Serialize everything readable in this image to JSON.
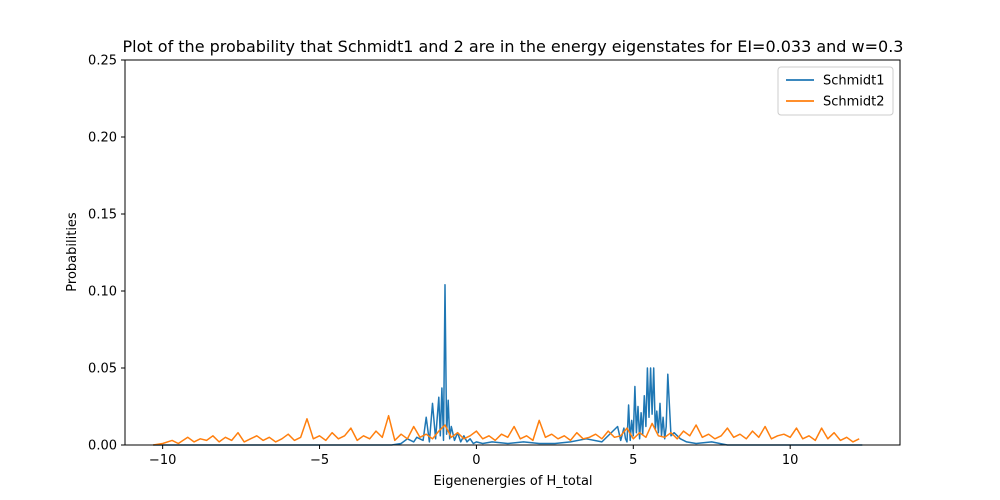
{
  "chart_data": {
    "type": "line",
    "title": "Plot of the probability that Schmidt1 and 2 are in the energy eigenstates for EI=0.033 and w=0.3",
    "xlabel": "Eigenenergies of H_total",
    "ylabel": "Probabilities",
    "xlim": [
      -11.2,
      13.5
    ],
    "ylim": [
      0,
      0.25
    ],
    "xticks": [
      -10,
      -5,
      0,
      5,
      10
    ],
    "xtick_labels": [
      "−10",
      "−5",
      "0",
      "5",
      "10"
    ],
    "yticks": [
      0.0,
      0.05,
      0.1,
      0.15,
      0.2,
      0.25
    ],
    "ytick_labels": [
      "0.00",
      "0.05",
      "0.10",
      "0.15",
      "0.20",
      "0.25"
    ],
    "grid": false,
    "legend_position": "top-right",
    "series": [
      {
        "name": "Schmidt1",
        "color": "#1f77b4",
        "x": [
          -10.3,
          -3.0,
          -2.7,
          -2.4,
          -2.2,
          -2.0,
          -1.9,
          -1.7,
          -1.6,
          -1.5,
          -1.4,
          -1.3,
          -1.2,
          -1.15,
          -1.1,
          -1.05,
          -1.0,
          -0.95,
          -0.9,
          -0.85,
          -0.8,
          -0.7,
          -0.6,
          -0.5,
          -0.4,
          -0.3,
          -0.2,
          -0.1,
          0.0,
          0.2,
          0.5,
          1.0,
          1.5,
          2.0,
          2.5,
          3.0,
          3.5,
          4.0,
          4.5,
          4.6,
          4.7,
          4.75,
          4.8,
          4.85,
          4.9,
          4.95,
          5.0,
          5.05,
          5.1,
          5.15,
          5.2,
          5.25,
          5.3,
          5.35,
          5.4,
          5.45,
          5.5,
          5.55,
          5.6,
          5.65,
          5.7,
          5.75,
          5.8,
          5.85,
          5.9,
          5.95,
          6.0,
          6.05,
          6.1,
          6.2,
          6.3,
          6.5,
          6.7,
          7.0,
          7.5,
          8.0,
          9.0,
          10.0,
          11.0,
          12.3
        ],
        "values": [
          0.0,
          0.0,
          0.0,
          0.001,
          0.004,
          0.002,
          0.005,
          0.003,
          0.018,
          0.002,
          0.027,
          0.004,
          0.031,
          0.006,
          0.037,
          0.003,
          0.104,
          0.007,
          0.029,
          0.004,
          0.012,
          0.003,
          0.008,
          0.002,
          0.006,
          0.002,
          0.004,
          0.001,
          0.002,
          0.001,
          0.002,
          0.001,
          0.002,
          0.001,
          0.001,
          0.002,
          0.004,
          0.002,
          0.012,
          0.003,
          0.011,
          0.004,
          0.002,
          0.026,
          0.003,
          0.016,
          0.006,
          0.038,
          0.008,
          0.025,
          0.004,
          0.021,
          0.007,
          0.032,
          0.012,
          0.05,
          0.018,
          0.05,
          0.02,
          0.05,
          0.01,
          0.022,
          0.008,
          0.027,
          0.006,
          0.018,
          0.004,
          0.012,
          0.046,
          0.006,
          0.008,
          0.004,
          0.002,
          0.001,
          0.002,
          0.0,
          0.0,
          0.0,
          0.0,
          0.0
        ]
      },
      {
        "name": "Schmidt2",
        "color": "#ff7f0e",
        "x": [
          -10.3,
          -10.0,
          -9.7,
          -9.5,
          -9.2,
          -9.0,
          -8.8,
          -8.6,
          -8.4,
          -8.2,
          -8.0,
          -7.8,
          -7.6,
          -7.4,
          -7.2,
          -7.0,
          -6.8,
          -6.6,
          -6.4,
          -6.2,
          -6.0,
          -5.8,
          -5.6,
          -5.4,
          -5.2,
          -5.0,
          -4.8,
          -4.6,
          -4.4,
          -4.2,
          -4.0,
          -3.8,
          -3.6,
          -3.4,
          -3.2,
          -3.0,
          -2.8,
          -2.6,
          -2.4,
          -2.2,
          -2.0,
          -1.8,
          -1.6,
          -1.4,
          -1.2,
          -1.0,
          -0.8,
          -0.6,
          -0.4,
          -0.2,
          0.0,
          0.2,
          0.4,
          0.6,
          0.8,
          1.0,
          1.2,
          1.4,
          1.6,
          1.8,
          2.0,
          2.2,
          2.4,
          2.6,
          2.8,
          3.0,
          3.2,
          3.4,
          3.6,
          3.8,
          4.0,
          4.2,
          4.4,
          4.6,
          4.8,
          5.0,
          5.2,
          5.4,
          5.6,
          5.8,
          6.0,
          6.2,
          6.4,
          6.6,
          6.8,
          7.0,
          7.2,
          7.4,
          7.6,
          7.8,
          8.0,
          8.2,
          8.4,
          8.6,
          8.8,
          9.0,
          9.2,
          9.4,
          9.6,
          9.8,
          10.0,
          10.2,
          10.4,
          10.6,
          10.8,
          11.0,
          11.2,
          11.4,
          11.6,
          11.8,
          12.0,
          12.2
        ],
        "values": [
          0.0,
          0.001,
          0.003,
          0.001,
          0.005,
          0.002,
          0.004,
          0.003,
          0.006,
          0.002,
          0.005,
          0.003,
          0.008,
          0.002,
          0.004,
          0.006,
          0.003,
          0.005,
          0.002,
          0.004,
          0.007,
          0.003,
          0.005,
          0.017,
          0.004,
          0.006,
          0.003,
          0.008,
          0.004,
          0.006,
          0.011,
          0.003,
          0.006,
          0.004,
          0.009,
          0.005,
          0.019,
          0.003,
          0.007,
          0.004,
          0.012,
          0.005,
          0.007,
          0.004,
          0.009,
          0.013,
          0.005,
          0.008,
          0.004,
          0.006,
          0.009,
          0.004,
          0.006,
          0.003,
          0.007,
          0.005,
          0.012,
          0.004,
          0.006,
          0.003,
          0.016,
          0.005,
          0.007,
          0.004,
          0.006,
          0.003,
          0.008,
          0.004,
          0.005,
          0.007,
          0.004,
          0.009,
          0.005,
          0.006,
          0.011,
          0.004,
          0.008,
          0.005,
          0.014,
          0.006,
          0.005,
          0.008,
          0.004,
          0.009,
          0.006,
          0.013,
          0.005,
          0.007,
          0.004,
          0.006,
          0.011,
          0.005,
          0.007,
          0.004,
          0.009,
          0.005,
          0.012,
          0.004,
          0.006,
          0.007,
          0.005,
          0.011,
          0.004,
          0.006,
          0.003,
          0.011,
          0.004,
          0.008,
          0.003,
          0.005,
          0.002,
          0.004
        ]
      }
    ]
  }
}
